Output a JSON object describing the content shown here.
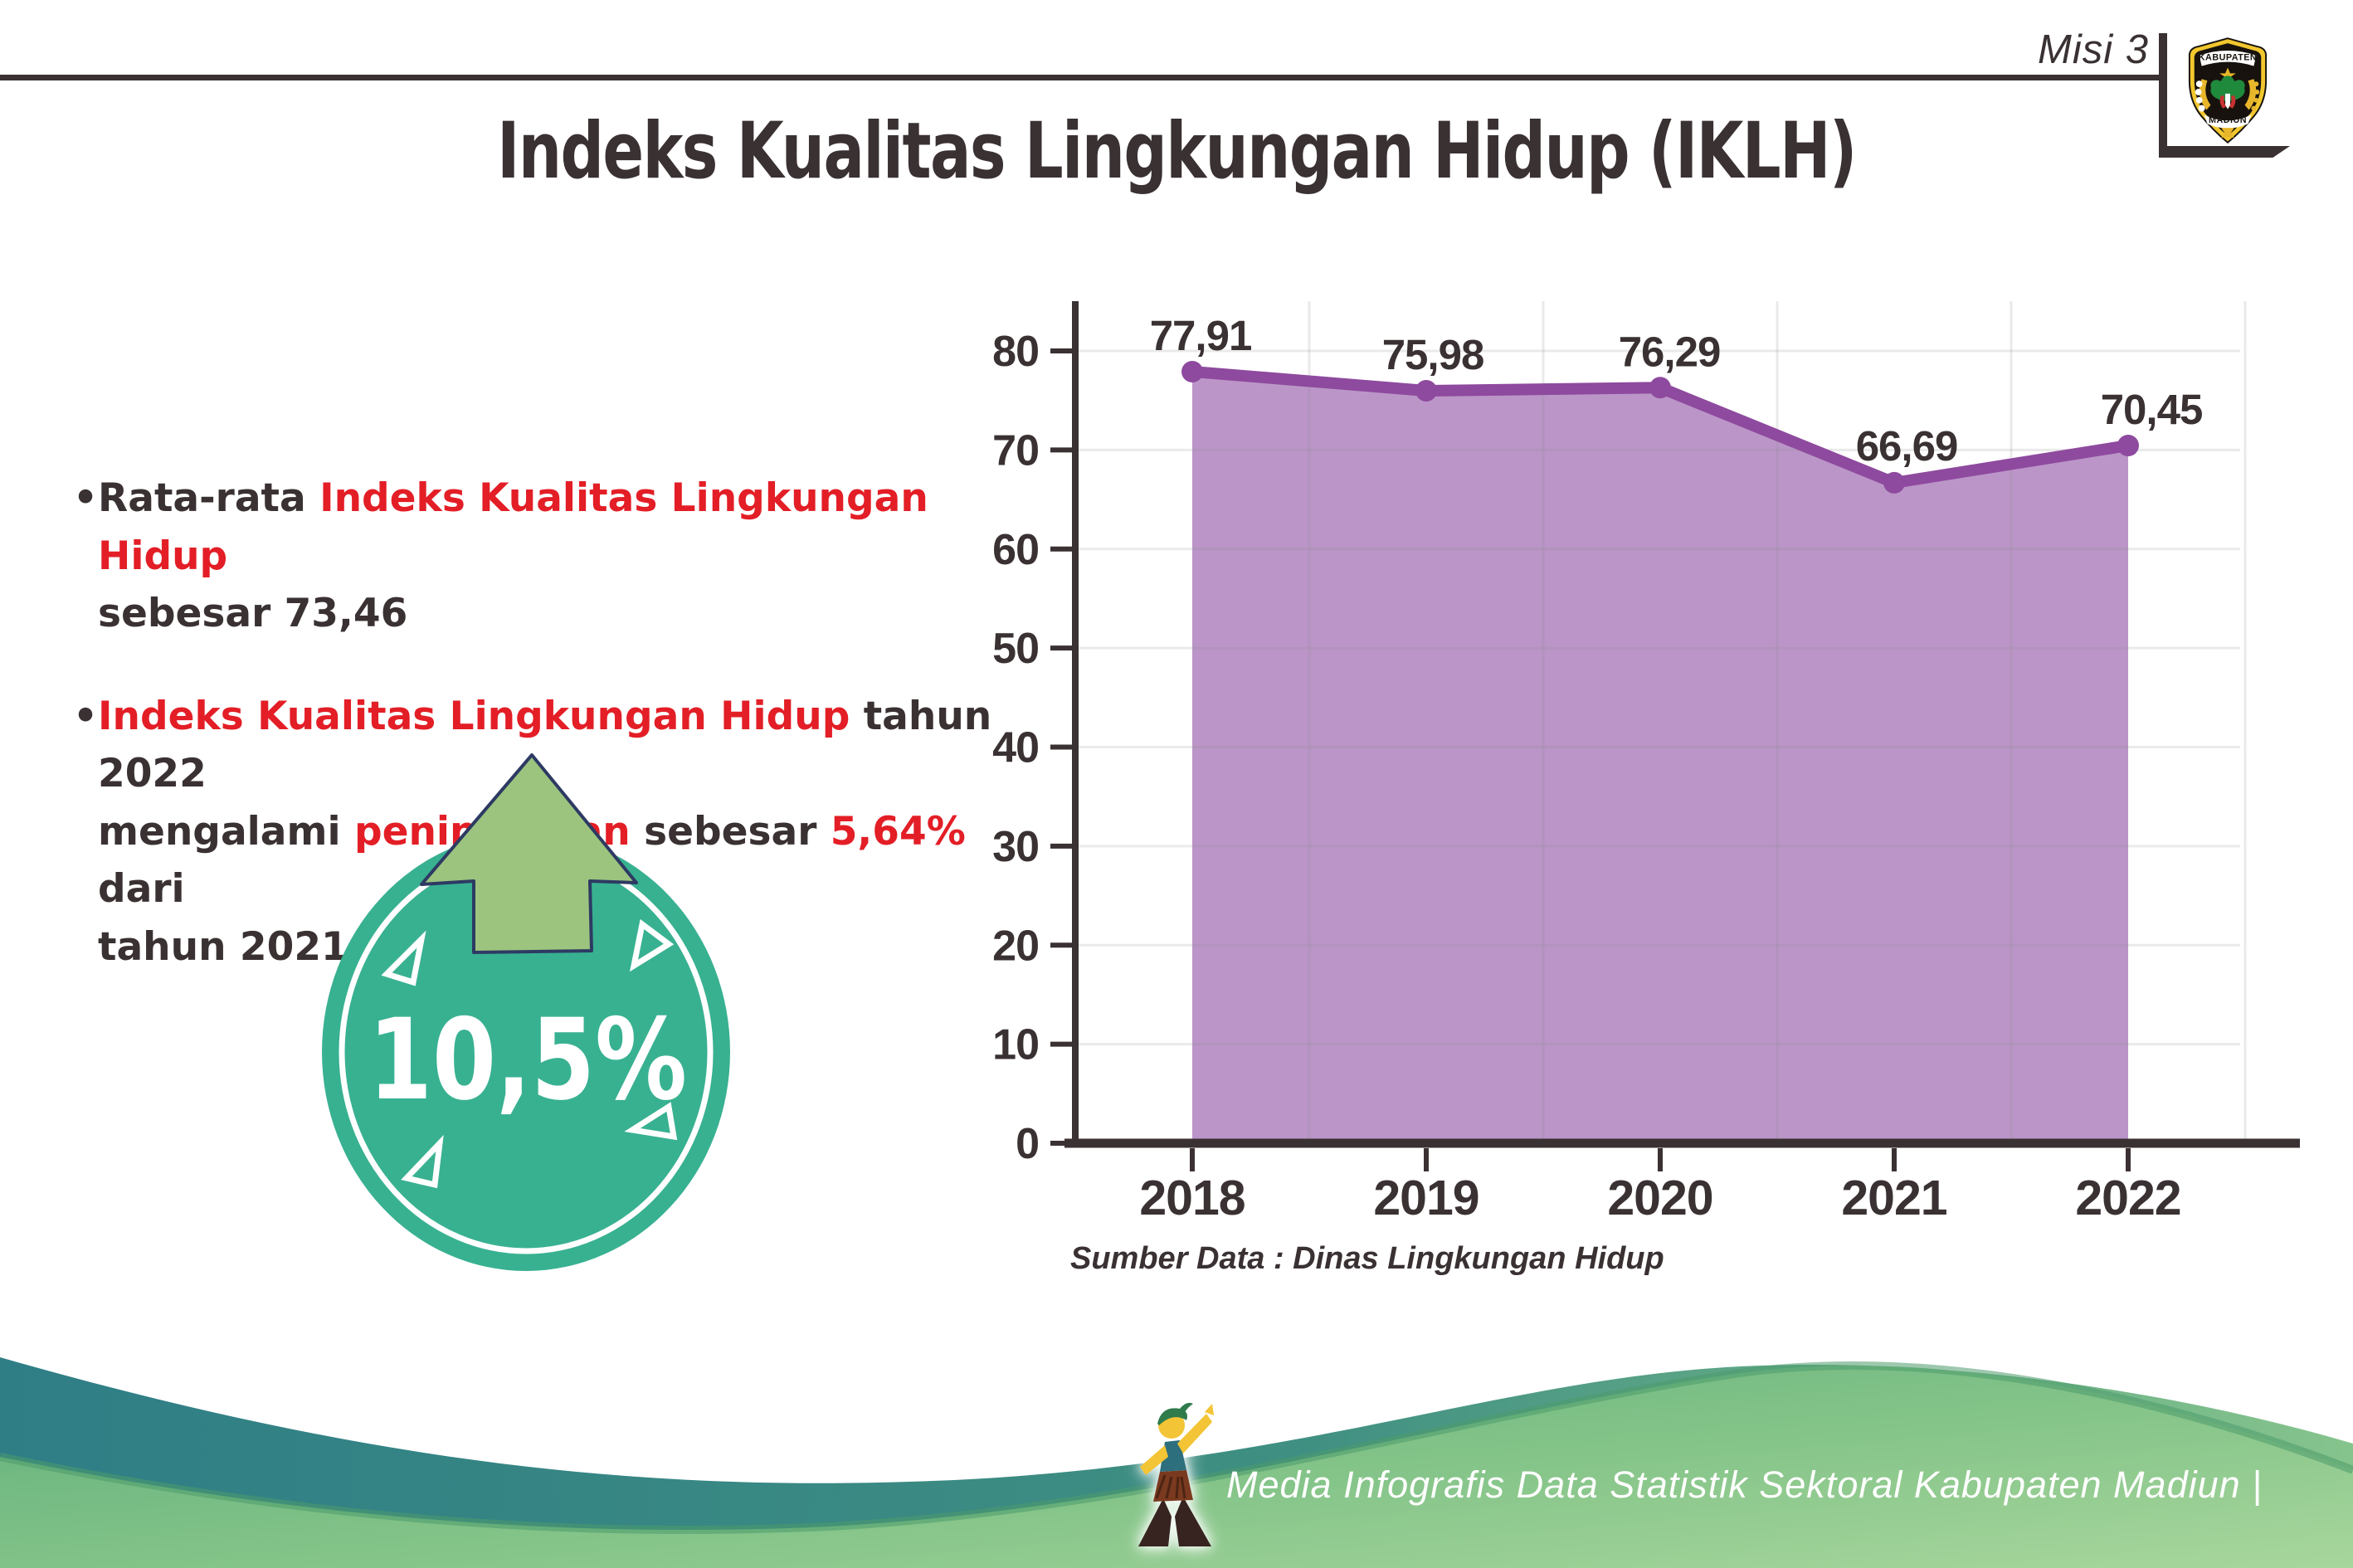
{
  "page": {
    "misi": "Misi 3",
    "title": "Indeks Kualitas Lingkungan Hidup (IKLH)"
  },
  "logo": {
    "top": "KABUPATEN",
    "bottom": "MADIUN"
  },
  "bullets": {
    "marker": "•",
    "b1": {
      "pre": "Rata-rata ",
      "highlight": "Indeks Kualitas Lingkungan Hidup",
      "post": "sebesar 73,46"
    },
    "b2": {
      "h1": "Indeks Kualitas Lingkungan Hidup",
      "t1": " tahun 2022",
      "t2": "mengalami ",
      "h2": "peningkatan",
      "t3": " sebesar ",
      "h3": "5,64%",
      "t4": " dari",
      "t5": "tahun 2021"
    }
  },
  "badge": {
    "value": "10,5%"
  },
  "chart_data": {
    "type": "area",
    "categories": [
      "2018",
      "2019",
      "2020",
      "2021",
      "2022"
    ],
    "values": [
      77.91,
      75.98,
      76.29,
      66.69,
      70.45
    ],
    "value_labels": [
      "77,91",
      "75,98",
      "76,29",
      "66,69",
      "70,45"
    ],
    "title": "",
    "xlabel": "",
    "ylabel": "",
    "ylim": [
      0,
      85
    ],
    "yticks": [
      0,
      10,
      20,
      30,
      40,
      50,
      60,
      70,
      80
    ],
    "grid": true,
    "legend": "none",
    "line_color": "#8e4a9e",
    "fill_color": "#b78fc5",
    "axis_color": "#3a3132",
    "source": "Sumber Data : Dinas Lingkungan Hidup"
  },
  "footer": {
    "text": "Media Infografis Data Statistik Sektoral Kabupaten Madiun |"
  },
  "colors": {
    "accent_red": "#e31e26",
    "text_dark": "#3a3132",
    "badge_teal": "#38b191",
    "arrow_green": "#9cc47e",
    "footer_teal": "#2f7e86",
    "footer_green": "#8cc68f"
  }
}
